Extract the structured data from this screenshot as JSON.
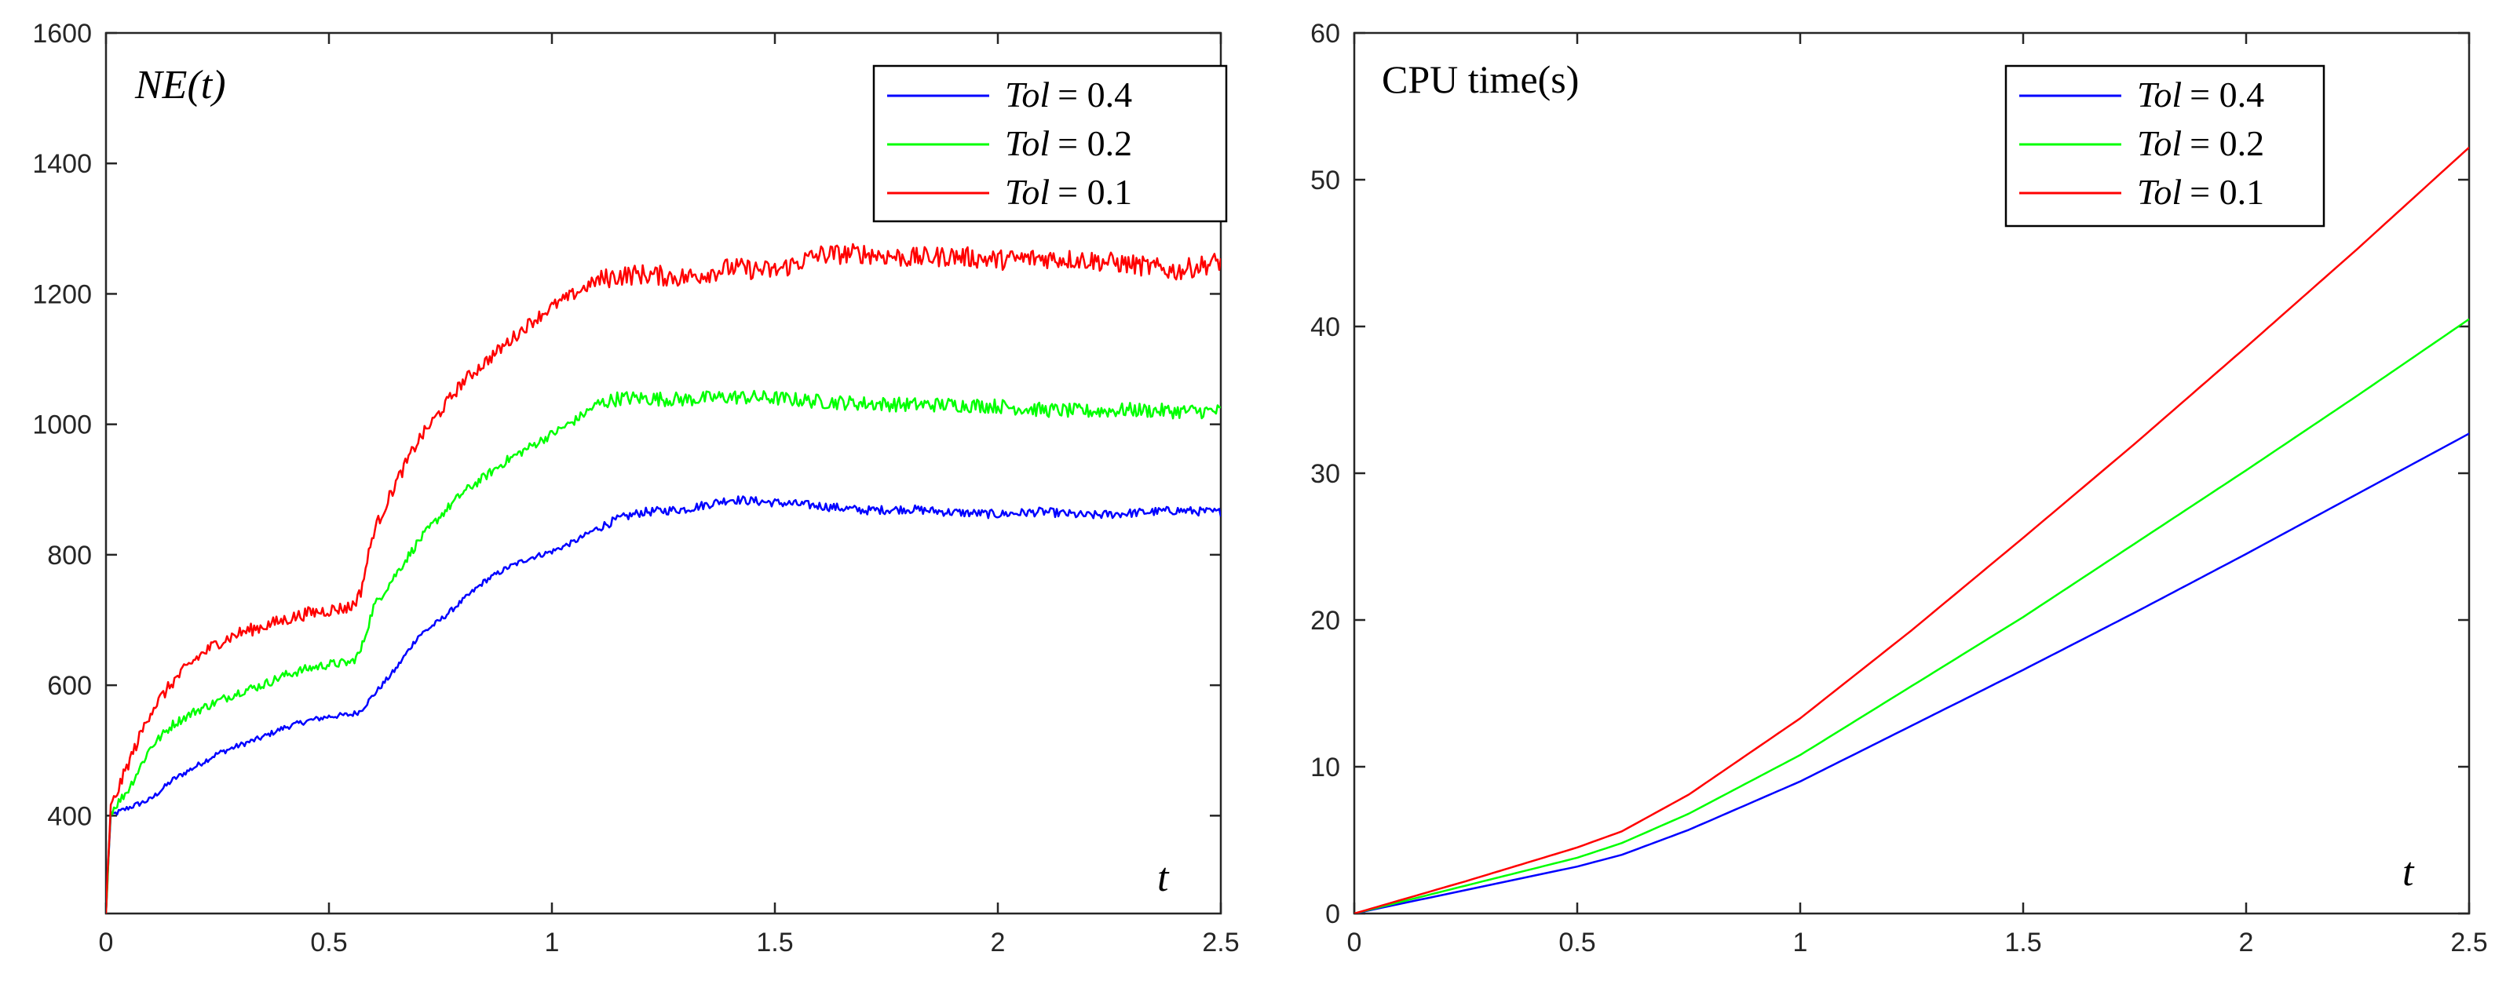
{
  "chart_data": [
    {
      "type": "line",
      "title": "",
      "annotation": "NE(t)",
      "xlabel": "t",
      "ylabel": "",
      "xlim": [
        0,
        2.5
      ],
      "ylim": [
        250,
        1600
      ],
      "xticks": [
        "0",
        "0.5",
        "1",
        "1.5",
        "2",
        "2.5"
      ],
      "yticks": [
        "400",
        "600",
        "800",
        "1000",
        "1200",
        "1400",
        "1600"
      ],
      "legend_position": "top-right",
      "series": [
        {
          "name": "Tol = 0.4",
          "legend_var": "Tol",
          "legend_value": "= 0.4",
          "color": "#0000ff",
          "x": [
            0,
            0.01,
            0.05,
            0.1,
            0.15,
            0.2,
            0.25,
            0.3,
            0.35,
            0.4,
            0.45,
            0.5,
            0.55,
            0.57,
            0.6,
            0.65,
            0.7,
            0.75,
            0.8,
            0.85,
            0.9,
            0.95,
            1.0,
            1.05,
            1.1,
            1.15,
            1.2,
            1.3,
            1.4,
            1.5,
            1.6,
            1.7,
            1.8,
            1.9,
            2.0,
            2.1,
            2.2,
            2.3,
            2.4,
            2.5
          ],
          "y": [
            250,
            400,
            412,
            425,
            455,
            475,
            495,
            508,
            520,
            535,
            545,
            552,
            555,
            560,
            585,
            625,
            675,
            700,
            730,
            760,
            780,
            795,
            805,
            820,
            840,
            855,
            865,
            870,
            885,
            880,
            875,
            868,
            870,
            865,
            862,
            866,
            860,
            864,
            868,
            865
          ]
        },
        {
          "name": "Tol = 0.2",
          "legend_var": "Tol",
          "legend_value": "= 0.2",
          "color": "#00ff00",
          "x": [
            0,
            0.01,
            0.05,
            0.1,
            0.15,
            0.2,
            0.25,
            0.3,
            0.35,
            0.4,
            0.45,
            0.5,
            0.55,
            0.57,
            0.6,
            0.65,
            0.7,
            0.75,
            0.8,
            0.85,
            0.9,
            0.95,
            1.0,
            1.05,
            1.1,
            1.15,
            1.2,
            1.3,
            1.4,
            1.5,
            1.6,
            1.7,
            1.8,
            1.9,
            2.0,
            2.1,
            2.2,
            2.3,
            2.4,
            2.5
          ],
          "y": [
            250,
            405,
            440,
            505,
            540,
            560,
            575,
            590,
            600,
            615,
            625,
            632,
            635,
            650,
            720,
            770,
            820,
            860,
            895,
            920,
            945,
            965,
            985,
            1005,
            1030,
            1040,
            1040,
            1038,
            1042,
            1040,
            1035,
            1032,
            1030,
            1030,
            1028,
            1022,
            1020,
            1022,
            1020,
            1020
          ]
        },
        {
          "name": "Tol = 0.1",
          "legend_var": "Tol",
          "legend_value": "= 0.1",
          "color": "#ff0000",
          "x": [
            0,
            0.01,
            0.05,
            0.1,
            0.15,
            0.2,
            0.25,
            0.3,
            0.35,
            0.4,
            0.45,
            0.5,
            0.55,
            0.57,
            0.6,
            0.65,
            0.7,
            0.75,
            0.8,
            0.85,
            0.9,
            0.95,
            1.0,
            1.05,
            1.1,
            1.15,
            1.2,
            1.3,
            1.4,
            1.5,
            1.6,
            1.7,
            1.8,
            1.9,
            2.0,
            2.1,
            2.2,
            2.3,
            2.4,
            2.5
          ],
          "y": [
            250,
            410,
            480,
            560,
            605,
            640,
            665,
            680,
            690,
            700,
            710,
            715,
            720,
            740,
            835,
            910,
            975,
            1020,
            1065,
            1095,
            1125,
            1155,
            1180,
            1200,
            1220,
            1228,
            1230,
            1225,
            1240,
            1235,
            1260,
            1262,
            1255,
            1258,
            1252,
            1255,
            1252,
            1245,
            1235,
            1250
          ]
        }
      ]
    },
    {
      "type": "line",
      "title": "",
      "annotation": "CPU time(s)",
      "xlabel": "t",
      "ylabel": "",
      "xlim": [
        0,
        2.5
      ],
      "ylim": [
        0,
        60
      ],
      "xticks": [
        "0",
        "0.5",
        "1",
        "1.5",
        "2",
        "2.5"
      ],
      "yticks": [
        "0",
        "10",
        "20",
        "30",
        "40",
        "50",
        "60"
      ],
      "legend_position": "top-right",
      "series": [
        {
          "name": "Tol = 0.4",
          "legend_var": "Tol",
          "legend_value": "= 0.4",
          "color": "#0000ff",
          "x": [
            0,
            0.25,
            0.5,
            0.6,
            0.75,
            1.0,
            1.25,
            1.5,
            1.75,
            2.0,
            2.25,
            2.5
          ],
          "y": [
            0,
            1.6,
            3.2,
            4.0,
            5.7,
            9.0,
            12.8,
            16.6,
            20.5,
            24.5,
            28.6,
            32.7
          ]
        },
        {
          "name": "Tol = 0.2",
          "legend_var": "Tol",
          "legend_value": "= 0.2",
          "color": "#00ff00",
          "x": [
            0,
            0.25,
            0.5,
            0.6,
            0.75,
            1.0,
            1.25,
            1.5,
            1.75,
            2.0,
            2.25,
            2.5
          ],
          "y": [
            0,
            1.9,
            3.8,
            4.8,
            6.8,
            10.8,
            15.5,
            20.2,
            25.2,
            30.2,
            35.3,
            40.5
          ]
        },
        {
          "name": "Tol = 0.1",
          "legend_var": "Tol",
          "legend_value": "= 0.1",
          "color": "#ff0000",
          "x": [
            0,
            0.25,
            0.5,
            0.6,
            0.75,
            1.0,
            1.25,
            1.5,
            1.75,
            2.0,
            2.25,
            2.5
          ],
          "y": [
            0,
            2.2,
            4.5,
            5.6,
            8.1,
            13.3,
            19.3,
            25.6,
            32.0,
            38.6,
            45.3,
            52.2
          ]
        }
      ]
    }
  ]
}
